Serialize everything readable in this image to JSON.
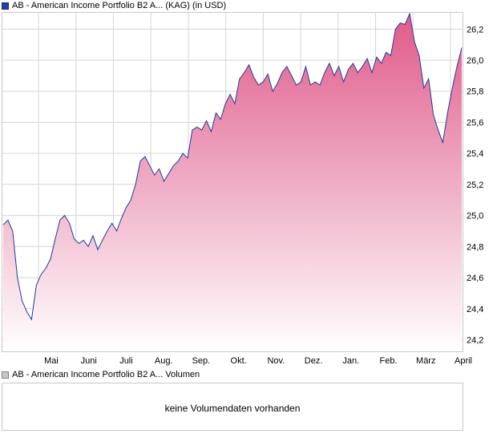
{
  "legend": {
    "price_label": "AB - American Income Portfolio B2 A... (KAG) (in USD)",
    "volume_label": "AB - American Income Portfolio B2 A... Volumen"
  },
  "volume_panel": {
    "message": "keine Volumendaten vorhanden"
  },
  "colors": {
    "line": "#1f3a9e",
    "fill_top": "#e05a8a",
    "fill_bottom": "#ffffff",
    "grid": "#d4d4d4",
    "border": "#c8c8c8"
  },
  "chart_data": {
    "type": "area",
    "x_tick_labels": [
      "Mai",
      "Juni",
      "Juli",
      "Aug.",
      "Sep.",
      "Okt.",
      "Nov.",
      "Dez.",
      "Jan.",
      "Feb.",
      "März",
      "April"
    ],
    "y_tick_labels": [
      "24,2",
      "24,4",
      "24,6",
      "24,8",
      "25,0",
      "25,2",
      "25,4",
      "25,6",
      "25,8",
      "26,0",
      "26,2"
    ],
    "y_ticks": [
      24.2,
      24.4,
      24.6,
      24.8,
      25.0,
      25.2,
      25.4,
      25.6,
      25.8,
      26.0,
      26.2
    ],
    "ylim": [
      24.12,
      26.31
    ],
    "grid": true,
    "series": [
      {
        "values": [
          24.94,
          24.97,
          24.9,
          24.6,
          24.45,
          24.38,
          24.33,
          24.55,
          24.62,
          24.66,
          24.72,
          24.85,
          24.97,
          25.0,
          24.95,
          24.85,
          24.82,
          24.84,
          24.8,
          24.87,
          24.78,
          24.84,
          24.9,
          24.95,
          24.9,
          24.98,
          25.05,
          25.1,
          25.2,
          25.35,
          25.38,
          25.32,
          25.26,
          25.3,
          25.22,
          25.27,
          25.32,
          25.35,
          25.4,
          25.37,
          25.55,
          25.57,
          25.55,
          25.61,
          25.54,
          25.66,
          25.62,
          25.72,
          25.78,
          25.72,
          25.88,
          25.92,
          25.97,
          25.89,
          25.84,
          25.86,
          25.91,
          25.8,
          25.85,
          25.92,
          25.96,
          25.9,
          25.84,
          25.86,
          25.96,
          25.84,
          25.86,
          25.84,
          25.92,
          25.98,
          25.9,
          25.96,
          25.86,
          25.94,
          25.98,
          25.92,
          25.96,
          26.01,
          25.92,
          26.02,
          25.98,
          26.05,
          26.03,
          26.2,
          26.24,
          26.23,
          26.3,
          26.12,
          26.03,
          25.82,
          25.88,
          25.65,
          25.55,
          25.47,
          25.66,
          25.82,
          25.96,
          26.08
        ]
      }
    ]
  }
}
